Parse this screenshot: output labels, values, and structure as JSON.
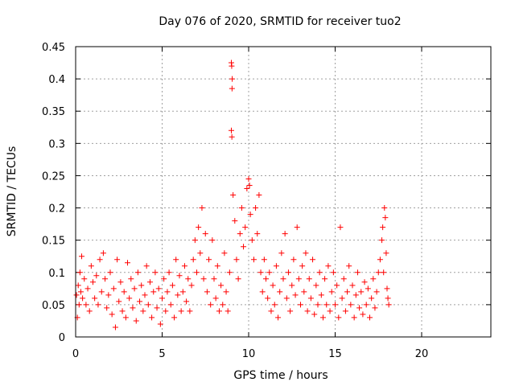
{
  "chart_data": {
    "type": "scatter",
    "title": "Day 076 of 2020, SRMTID for receiver tuo2",
    "xlabel": "GPS time / hours",
    "ylabel": "SRMTID / TECUs",
    "xlim": [
      0,
      24
    ],
    "ylim": [
      0,
      0.45
    ],
    "x_ticks": [
      0,
      5,
      10,
      15,
      20
    ],
    "x_tick_labels": [
      "0",
      "5",
      "10",
      "15",
      "20"
    ],
    "y_ticks": [
      0,
      0.05,
      0.1,
      0.15,
      0.2,
      0.25,
      0.3,
      0.35,
      0.4,
      0.45
    ],
    "y_tick_labels": [
      "0",
      "0.05",
      "0.1",
      "0.15",
      "0.2",
      "0.25",
      "0.3",
      "0.35",
      "0.4",
      "0.45"
    ],
    "grid": true,
    "marker": "+",
    "marker_color": "#ff0000",
    "series": [
      {
        "name": "SRMTID",
        "points": [
          [
            0.05,
            0.065
          ],
          [
            0.1,
            0.03
          ],
          [
            0.15,
            0.08
          ],
          [
            0.2,
            0.05
          ],
          [
            0.25,
            0.1
          ],
          [
            0.3,
            0.07
          ],
          [
            0.35,
            0.125
          ],
          [
            0.4,
            0.06
          ],
          [
            0.5,
            0.09
          ],
          [
            0.6,
            0.05
          ],
          [
            0.7,
            0.075
          ],
          [
            0.8,
            0.04
          ],
          [
            0.9,
            0.11
          ],
          [
            1.0,
            0.085
          ],
          [
            1.1,
            0.06
          ],
          [
            1.2,
            0.095
          ],
          [
            1.3,
            0.05
          ],
          [
            1.4,
            0.12
          ],
          [
            1.5,
            0.07
          ],
          [
            1.6,
            0.13
          ],
          [
            1.7,
            0.09
          ],
          [
            1.8,
            0.045
          ],
          [
            1.9,
            0.065
          ],
          [
            2.0,
            0.1
          ],
          [
            2.1,
            0.035
          ],
          [
            2.2,
            0.075
          ],
          [
            2.3,
            0.015
          ],
          [
            2.4,
            0.12
          ],
          [
            2.5,
            0.055
          ],
          [
            2.6,
            0.085
          ],
          [
            2.7,
            0.04
          ],
          [
            2.8,
            0.07
          ],
          [
            2.9,
            0.03
          ],
          [
            3.0,
            0.115
          ],
          [
            3.1,
            0.06
          ],
          [
            3.2,
            0.09
          ],
          [
            3.3,
            0.045
          ],
          [
            3.4,
            0.075
          ],
          [
            3.5,
            0.025
          ],
          [
            3.6,
            0.1
          ],
          [
            3.7,
            0.055
          ],
          [
            3.8,
            0.08
          ],
          [
            3.9,
            0.04
          ],
          [
            4.0,
            0.065
          ],
          [
            4.1,
            0.11
          ],
          [
            4.2,
            0.05
          ],
          [
            4.3,
            0.085
          ],
          [
            4.4,
            0.03
          ],
          [
            4.5,
            0.07
          ],
          [
            4.6,
            0.1
          ],
          [
            4.7,
            0.045
          ],
          [
            4.8,
            0.075
          ],
          [
            4.9,
            0.02
          ],
          [
            5.0,
            0.06
          ],
          [
            5.1,
            0.09
          ],
          [
            5.2,
            0.04
          ],
          [
            5.3,
            0.07
          ],
          [
            5.4,
            0.1
          ],
          [
            5.5,
            0.05
          ],
          [
            5.6,
            0.08
          ],
          [
            5.7,
            0.03
          ],
          [
            5.8,
            0.12
          ],
          [
            5.9,
            0.065
          ],
          [
            6.0,
            0.095
          ],
          [
            6.1,
            0.04
          ],
          [
            6.2,
            0.07
          ],
          [
            6.3,
            0.11
          ],
          [
            6.4,
            0.055
          ],
          [
            6.5,
            0.09
          ],
          [
            6.6,
            0.04
          ],
          [
            6.7,
            0.08
          ],
          [
            6.8,
            0.12
          ],
          [
            6.9,
            0.15
          ],
          [
            7.0,
            0.1
          ],
          [
            7.1,
            0.17
          ],
          [
            7.2,
            0.13
          ],
          [
            7.3,
            0.2
          ],
          [
            7.4,
            0.09
          ],
          [
            7.5,
            0.16
          ],
          [
            7.6,
            0.07
          ],
          [
            7.7,
            0.12
          ],
          [
            7.8,
            0.05
          ],
          [
            7.9,
            0.15
          ],
          [
            8.0,
            0.09
          ],
          [
            8.1,
            0.06
          ],
          [
            8.2,
            0.11
          ],
          [
            8.3,
            0.04
          ],
          [
            8.4,
            0.08
          ],
          [
            8.5,
            0.05
          ],
          [
            8.6,
            0.13
          ],
          [
            8.7,
            0.07
          ],
          [
            8.8,
            0.04
          ],
          [
            8.9,
            0.1
          ],
          [
            9.0,
            0.425
          ],
          [
            9.02,
            0.42
          ],
          [
            9.04,
            0.385
          ],
          [
            9.05,
            0.4
          ],
          [
            9.0,
            0.32
          ],
          [
            9.03,
            0.31
          ],
          [
            9.1,
            0.22
          ],
          [
            9.2,
            0.18
          ],
          [
            9.3,
            0.12
          ],
          [
            9.4,
            0.09
          ],
          [
            9.5,
            0.16
          ],
          [
            9.6,
            0.2
          ],
          [
            9.7,
            0.14
          ],
          [
            9.8,
            0.17
          ],
          [
            9.9,
            0.23
          ],
          [
            10.0,
            0.245
          ],
          [
            10.05,
            0.235
          ],
          [
            10.1,
            0.19
          ],
          [
            10.2,
            0.15
          ],
          [
            10.3,
            0.12
          ],
          [
            10.4,
            0.2
          ],
          [
            10.5,
            0.16
          ],
          [
            10.6,
            0.22
          ],
          [
            10.7,
            0.1
          ],
          [
            10.8,
            0.07
          ],
          [
            10.9,
            0.12
          ],
          [
            11.0,
            0.09
          ],
          [
            11.1,
            0.06
          ],
          [
            11.2,
            0.1
          ],
          [
            11.3,
            0.04
          ],
          [
            11.4,
            0.08
          ],
          [
            11.5,
            0.05
          ],
          [
            11.6,
            0.11
          ],
          [
            11.7,
            0.03
          ],
          [
            11.8,
            0.07
          ],
          [
            11.9,
            0.13
          ],
          [
            12.0,
            0.09
          ],
          [
            12.1,
            0.16
          ],
          [
            12.2,
            0.06
          ],
          [
            12.3,
            0.1
          ],
          [
            12.4,
            0.04
          ],
          [
            12.5,
            0.08
          ],
          [
            12.6,
            0.12
          ],
          [
            12.7,
            0.065
          ],
          [
            12.8,
            0.17
          ],
          [
            12.9,
            0.09
          ],
          [
            13.0,
            0.05
          ],
          [
            13.1,
            0.11
          ],
          [
            13.2,
            0.07
          ],
          [
            13.3,
            0.13
          ],
          [
            13.4,
            0.04
          ],
          [
            13.5,
            0.09
          ],
          [
            13.6,
            0.06
          ],
          [
            13.7,
            0.12
          ],
          [
            13.8,
            0.035
          ],
          [
            13.9,
            0.08
          ],
          [
            14.0,
            0.05
          ],
          [
            14.1,
            0.1
          ],
          [
            14.2,
            0.065
          ],
          [
            14.3,
            0.03
          ],
          [
            14.4,
            0.09
          ],
          [
            14.5,
            0.05
          ],
          [
            14.6,
            0.11
          ],
          [
            14.7,
            0.04
          ],
          [
            14.8,
            0.07
          ],
          [
            14.9,
            0.1
          ],
          [
            15.0,
            0.05
          ],
          [
            15.1,
            0.08
          ],
          [
            15.2,
            0.03
          ],
          [
            15.3,
            0.17
          ],
          [
            15.4,
            0.06
          ],
          [
            15.5,
            0.09
          ],
          [
            15.6,
            0.04
          ],
          [
            15.7,
            0.07
          ],
          [
            15.8,
            0.11
          ],
          [
            15.9,
            0.05
          ],
          [
            16.0,
            0.08
          ],
          [
            16.1,
            0.03
          ],
          [
            16.2,
            0.065
          ],
          [
            16.3,
            0.1
          ],
          [
            16.4,
            0.045
          ],
          [
            16.5,
            0.07
          ],
          [
            16.6,
            0.035
          ],
          [
            16.7,
            0.085
          ],
          [
            16.8,
            0.05
          ],
          [
            16.9,
            0.075
          ],
          [
            17.0,
            0.03
          ],
          [
            17.1,
            0.06
          ],
          [
            17.2,
            0.09
          ],
          [
            17.3,
            0.045
          ],
          [
            17.4,
            0.07
          ],
          [
            17.5,
            0.1
          ],
          [
            17.6,
            0.12
          ],
          [
            17.7,
            0.15
          ],
          [
            17.75,
            0.17
          ],
          [
            17.8,
            0.1
          ],
          [
            17.85,
            0.2
          ],
          [
            17.9,
            0.185
          ],
          [
            17.95,
            0.13
          ],
          [
            18.0,
            0.075
          ],
          [
            18.05,
            0.06
          ],
          [
            18.1,
            0.05
          ]
        ]
      }
    ]
  }
}
